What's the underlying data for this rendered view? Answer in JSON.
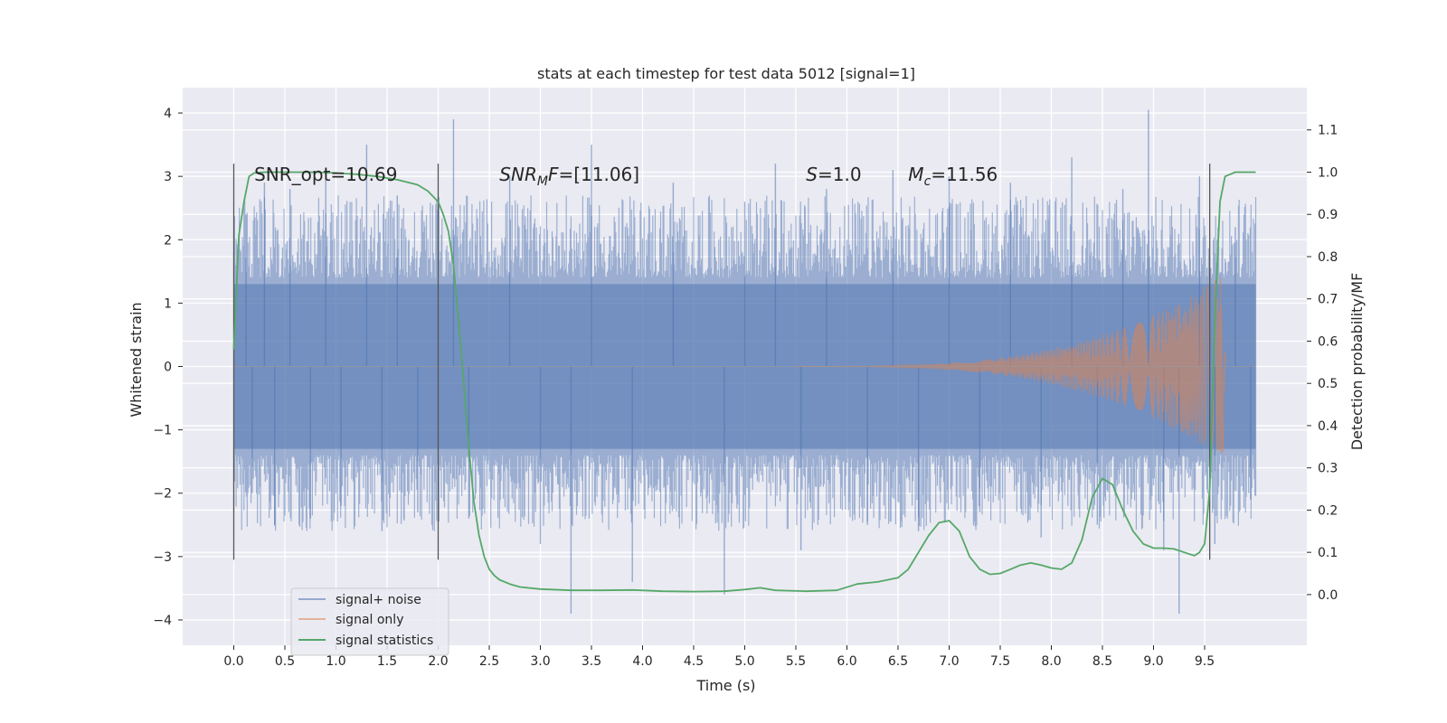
{
  "chart_data": {
    "type": "line",
    "title": "stats at each timestep for test data 5012 [signal=1]",
    "xlabel": "Time (s)",
    "ylabel": "Whitened strain",
    "y2label": "Detection probability/MF",
    "xlim": [
      -0.5,
      10.5
    ],
    "ylim": [
      -4.4,
      4.4
    ],
    "y2lim": [
      -0.12,
      1.2
    ],
    "x_ticks": [
      0.0,
      0.5,
      1.0,
      1.5,
      2.0,
      2.5,
      3.0,
      3.5,
      4.0,
      4.5,
      5.0,
      5.5,
      6.0,
      6.5,
      7.0,
      7.5,
      8.0,
      8.5,
      9.0,
      9.5
    ],
    "x_tick_labels": [
      "0.0",
      "0.5",
      "1.0",
      "1.5",
      "2.0",
      "2.5",
      "3.0",
      "3.5",
      "4.0",
      "4.5",
      "5.0",
      "5.5",
      "6.0",
      "6.5",
      "7.0",
      "7.5",
      "8.0",
      "8.5",
      "9.0",
      "9.5"
    ],
    "y_ticks": [
      -4,
      -3,
      -2,
      -1,
      0,
      1,
      2,
      3,
      4
    ],
    "y_tick_labels": [
      "−4",
      "−3",
      "−2",
      "−1",
      "0",
      "1",
      "2",
      "3",
      "4"
    ],
    "y2_ticks": [
      0.0,
      0.1,
      0.2,
      0.3,
      0.4,
      0.5,
      0.6,
      0.7,
      0.8,
      0.9,
      1.0,
      1.1
    ],
    "y2_tick_labels": [
      "0.0",
      "0.1",
      "0.2",
      "0.3",
      "0.4",
      "0.5",
      "0.6",
      "0.7",
      "0.8",
      "0.9",
      "1.0",
      "1.1"
    ],
    "grid": true,
    "legend_position": "lower-left",
    "annotations": [
      {
        "id": "snr-opt",
        "text": "SNR_opt=10.69",
        "x": 0.2,
        "y2": 0.98
      },
      {
        "id": "snr-mf",
        "base": "SNR",
        "sub": "M",
        "rest": "F=[11.06]",
        "x": 2.6,
        "y2": 0.98
      },
      {
        "id": "s-val",
        "base": "S",
        "sub": "",
        "rest": "=1.0",
        "x": 5.6,
        "y2": 0.98
      },
      {
        "id": "mc-val",
        "base": "M",
        "sub": "c",
        "rest": "=11.56",
        "x": 6.6,
        "y2": 0.98
      }
    ],
    "vlines": [
      {
        "x": 0.0,
        "ymin": -3.05,
        "ymax": 3.2
      },
      {
        "x": 2.0,
        "ymin": -3.05,
        "ymax": 3.2
      },
      {
        "x": 9.55,
        "ymin": -3.05,
        "ymax": 3.2
      }
    ],
    "series": [
      {
        "name": "signal+ noise",
        "color": "#4c72b0",
        "kind": "noise",
        "x_range": [
          0.0,
          10.0
        ],
        "core_amplitude": 1.3,
        "spikes_t": [
          0.12,
          0.18,
          0.3,
          0.4,
          0.55,
          0.75,
          0.9,
          1.05,
          1.3,
          1.45,
          1.6,
          1.8,
          2.15,
          2.3,
          2.7,
          3.0,
          3.3,
          3.5,
          3.9,
          4.3,
          4.8,
          5.0,
          5.3,
          5.55,
          5.8,
          6.2,
          6.45,
          6.7,
          7.0,
          7.3,
          7.6,
          7.9,
          8.2,
          8.45,
          8.7,
          8.95,
          9.1,
          9.25,
          9.45,
          9.6,
          9.8,
          9.95
        ],
        "spikes_v": [
          2.4,
          -2.0,
          2.9,
          -2.5,
          2.8,
          -2.4,
          3.0,
          -2.2,
          3.5,
          -2.6,
          2.7,
          -2.3,
          3.9,
          -2.4,
          3.0,
          -2.8,
          -3.9,
          3.5,
          -3.4,
          2.9,
          -3.6,
          2.6,
          3.2,
          -2.9,
          2.8,
          -2.5,
          3.1,
          -2.6,
          3.0,
          -2.3,
          2.9,
          -2.7,
          3.3,
          -2.5,
          2.8,
          4.05,
          -2.9,
          -3.9,
          3.0,
          -2.8,
          2.2,
          -2.1
        ]
      },
      {
        "name": "signal only",
        "color": "#dd8452",
        "kind": "chirp",
        "x_range": [
          5.5,
          9.72
        ],
        "peak_t": 9.68,
        "peak_amplitude": 1.45
      },
      {
        "name": "signal statistics",
        "color": "#55a868",
        "kind": "line",
        "axis": "right",
        "x": [
          0.0,
          0.05,
          0.1,
          0.15,
          0.2,
          0.3,
          0.5,
          0.8,
          1.0,
          1.2,
          1.4,
          1.6,
          1.8,
          1.9,
          2.0,
          2.05,
          2.1,
          2.15,
          2.2,
          2.25,
          2.3,
          2.35,
          2.4,
          2.45,
          2.5,
          2.55,
          2.6,
          2.7,
          2.8,
          3.0,
          3.3,
          3.6,
          3.9,
          4.2,
          4.5,
          4.8,
          5.0,
          5.15,
          5.3,
          5.6,
          5.9,
          6.1,
          6.3,
          6.5,
          6.6,
          6.7,
          6.8,
          6.9,
          7.0,
          7.1,
          7.2,
          7.3,
          7.4,
          7.5,
          7.6,
          7.7,
          7.8,
          7.9,
          8.0,
          8.1,
          8.2,
          8.3,
          8.4,
          8.5,
          8.6,
          8.7,
          8.8,
          8.9,
          9.0,
          9.1,
          9.2,
          9.3,
          9.4,
          9.45,
          9.5,
          9.55,
          9.6,
          9.65,
          9.7,
          9.8,
          10.0
        ],
        "y": [
          0.58,
          0.85,
          0.93,
          0.99,
          0.998,
          1.0,
          1.0,
          1.0,
          0.998,
          0.995,
          0.99,
          0.982,
          0.97,
          0.955,
          0.93,
          0.9,
          0.86,
          0.78,
          0.65,
          0.5,
          0.35,
          0.22,
          0.14,
          0.09,
          0.06,
          0.045,
          0.035,
          0.025,
          0.018,
          0.013,
          0.01,
          0.01,
          0.011,
          0.008,
          0.007,
          0.008,
          0.012,
          0.016,
          0.01,
          0.008,
          0.01,
          0.025,
          0.03,
          0.04,
          0.06,
          0.1,
          0.14,
          0.17,
          0.175,
          0.15,
          0.09,
          0.06,
          0.048,
          0.05,
          0.06,
          0.07,
          0.075,
          0.07,
          0.063,
          0.06,
          0.075,
          0.13,
          0.23,
          0.275,
          0.26,
          0.2,
          0.15,
          0.12,
          0.11,
          0.11,
          0.108,
          0.1,
          0.092,
          0.1,
          0.12,
          0.25,
          0.65,
          0.93,
          0.99,
          1.0,
          1.0
        ]
      }
    ]
  }
}
